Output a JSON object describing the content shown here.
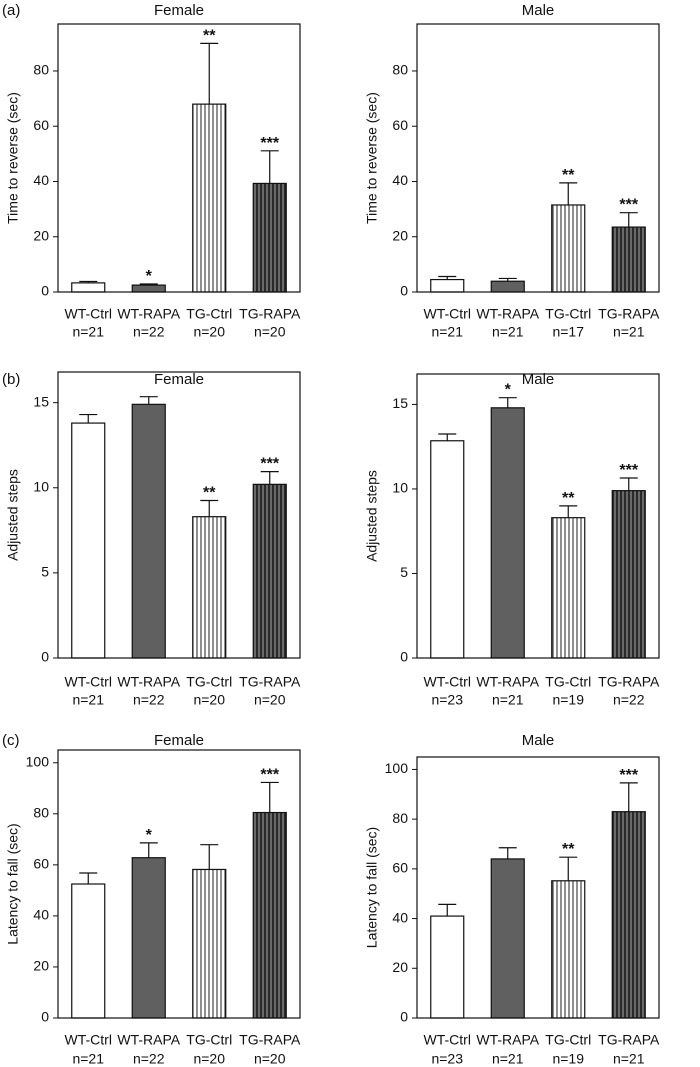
{
  "colors": {
    "white_fill": "#ffffff",
    "rapa_fill": "#606060",
    "hatch_line": "#222222",
    "axis": "#111111"
  },
  "chart_data": [
    {
      "type": "bar",
      "panel": "(a)",
      "title": "Female",
      "ylabel": "Time to reverse (sec)",
      "ylim": [
        0,
        97
      ],
      "yticks": [
        0,
        20,
        40,
        60,
        80
      ],
      "categories": [
        "WT-Ctrl",
        "WT-RAPA",
        "TG-Ctrl",
        "TG-RAPA"
      ],
      "n_labels": [
        "n=21",
        "n=22",
        "n=20",
        "n=20"
      ],
      "fills": [
        "white",
        "dark",
        "hatch-light",
        "hatch-dark"
      ],
      "values": [
        3.3,
        2.5,
        68,
        39.3
      ],
      "errors": [
        0.5,
        0.4,
        22,
        11.8
      ],
      "significance": [
        "",
        "*",
        "**",
        "***"
      ]
    },
    {
      "type": "bar",
      "panel": "",
      "title": "Male",
      "ylabel": "Time to reverse (sec)",
      "ylim": [
        0,
        97
      ],
      "yticks": [
        0,
        20,
        40,
        60,
        80
      ],
      "categories": [
        "WT-Ctrl",
        "WT-RAPA",
        "TG-Ctrl",
        "TG-RAPA"
      ],
      "n_labels": [
        "n=21",
        "n=21",
        "n=17",
        "n=21"
      ],
      "fills": [
        "white",
        "dark",
        "hatch-light",
        "hatch-dark"
      ],
      "values": [
        4.5,
        3.9,
        31.5,
        23.5
      ],
      "errors": [
        1.1,
        1.0,
        8.0,
        5.2
      ],
      "significance": [
        "",
        "",
        "**",
        "***"
      ]
    },
    {
      "type": "bar",
      "panel": "(b)",
      "title": "Female",
      "ylabel": "Adjusted steps",
      "ylim": [
        0,
        16.8
      ],
      "yticks": [
        0,
        5,
        10,
        15
      ],
      "categories": [
        "WT-Ctrl",
        "WT-RAPA",
        "TG-Ctrl",
        "TG-RAPA"
      ],
      "n_labels": [
        "n=21",
        "n=22",
        "n=20",
        "n=20"
      ],
      "fills": [
        "white",
        "dark",
        "hatch-light",
        "hatch-dark"
      ],
      "values": [
        13.8,
        14.9,
        8.3,
        10.2
      ],
      "errors": [
        0.5,
        0.45,
        0.95,
        0.75
      ],
      "significance": [
        "",
        "",
        "**",
        "***"
      ]
    },
    {
      "type": "bar",
      "panel": "",
      "title": "Male",
      "ylabel": "Adjusted steps",
      "ylim": [
        0,
        16.8
      ],
      "yticks": [
        0,
        5,
        10,
        15
      ],
      "categories": [
        "WT-Ctrl",
        "WT-RAPA",
        "TG-Ctrl",
        "TG-RAPA"
      ],
      "n_labels": [
        "n=23",
        "n=21",
        "n=19",
        "n=22"
      ],
      "fills": [
        "white",
        "dark",
        "hatch-light",
        "hatch-dark"
      ],
      "values": [
        12.85,
        14.8,
        8.3,
        9.9
      ],
      "errors": [
        0.4,
        0.6,
        0.7,
        0.75
      ],
      "significance": [
        "",
        "*",
        "**",
        "***"
      ]
    },
    {
      "type": "bar",
      "panel": "(c)",
      "title": "Female",
      "ylabel": "Latency to fall (sec)",
      "ylim": [
        0,
        105
      ],
      "yticks": [
        0,
        20,
        40,
        60,
        80,
        100
      ],
      "categories": [
        "WT-Ctrl",
        "WT-RAPA",
        "TG-Ctrl",
        "TG-RAPA"
      ],
      "n_labels": [
        "n=21",
        "n=22",
        "n=20",
        "n=20"
      ],
      "fills": [
        "white",
        "dark",
        "hatch-light",
        "hatch-dark"
      ],
      "values": [
        52.5,
        62.8,
        58.2,
        80.5
      ],
      "errors": [
        4.3,
        5.8,
        9.7,
        11.8
      ],
      "significance": [
        "",
        "*",
        "",
        "***"
      ]
    },
    {
      "type": "bar",
      "panel": "",
      "title": "Male",
      "ylabel": "Latency to fall (sec)",
      "ylim": [
        0,
        105
      ],
      "yticks": [
        0,
        20,
        40,
        60,
        80,
        100
      ],
      "categories": [
        "WT-Ctrl",
        "WT-RAPA",
        "TG-Ctrl",
        "TG-RAPA"
      ],
      "n_labels": [
        "n=23",
        "n=21",
        "n=19",
        "n=21"
      ],
      "fills": [
        "white",
        "dark",
        "hatch-light",
        "hatch-dark"
      ],
      "values": [
        41,
        64,
        55.2,
        83
      ],
      "errors": [
        4.7,
        4.5,
        9.5,
        11.6
      ],
      "significance": [
        "",
        "",
        "**",
        "***"
      ]
    }
  ]
}
